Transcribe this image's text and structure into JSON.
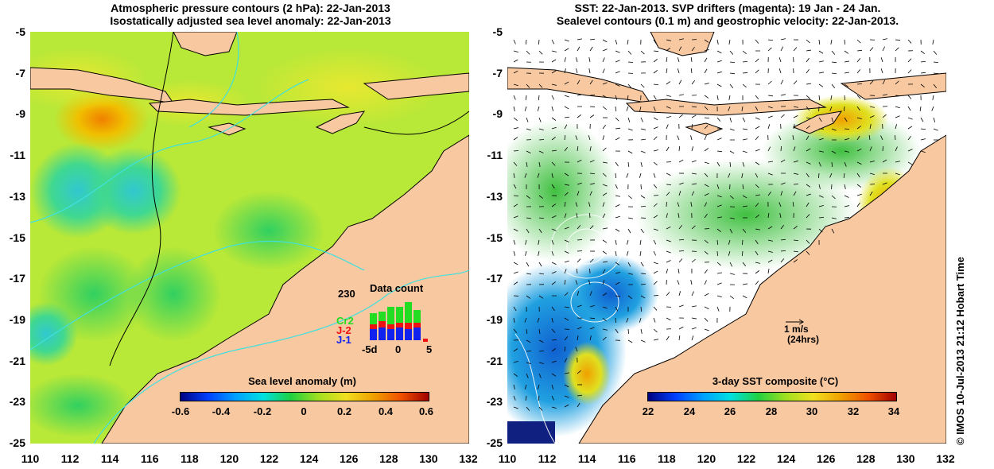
{
  "left_panel": {
    "title_line1": "Atmospheric pressure contours (2 hPa): 22-Jan-2013",
    "title_line2": "Isostatically adjusted sea level anomaly: 22-Jan-2013",
    "colorbar": {
      "title": "Sea level anomaly (m)",
      "ticks": [
        "-0.6",
        "-0.4",
        "-0.2",
        "0",
        "0.2",
        "0.4",
        "0.6"
      ]
    },
    "data_count": {
      "title": "Data count",
      "ymax_label": "230",
      "x_labels": [
        "-5d",
        "0",
        "5"
      ],
      "series": [
        {
          "name": "Cr2",
          "color": "#22dd22"
        },
        {
          "name": "J-2",
          "color": "#ee1111"
        },
        {
          "name": "J-1",
          "color": "#1122ee"
        }
      ]
    }
  },
  "right_panel": {
    "title_line1": "SST: 22-Jan-2013. SVP drifters (magenta): 19 Jan - 24 Jan.",
    "title_line2": "Sealevel contours (0.1 m) and geostrophic velocity: 22-Jan-2013.",
    "colorbar": {
      "title": "3-day SST composite (°C)",
      "ticks": [
        "22",
        "24",
        "26",
        "28",
        "30",
        "32",
        "34"
      ]
    },
    "velocity_scale": {
      "line1": "1 m/s",
      "line2": "(24hrs)"
    }
  },
  "axes": {
    "y_ticks": [
      "-5",
      "-7",
      "-9",
      "-11",
      "-13",
      "-15",
      "-17",
      "-19",
      "-21",
      "-23",
      "-25"
    ],
    "x_ticks": [
      "110",
      "112",
      "114",
      "116",
      "118",
      "120",
      "122",
      "124",
      "126",
      "128",
      "130",
      "132"
    ]
  },
  "copyright": "© IMOS 10-Jul-2013 21:12 Hobart Time",
  "colors": {
    "land": "#f8c8a0",
    "ocean_base": "#c0ec30",
    "sst_cloud": "#ffffff",
    "coastline": "#000000",
    "pressure_contour": "#40e0e0"
  }
}
